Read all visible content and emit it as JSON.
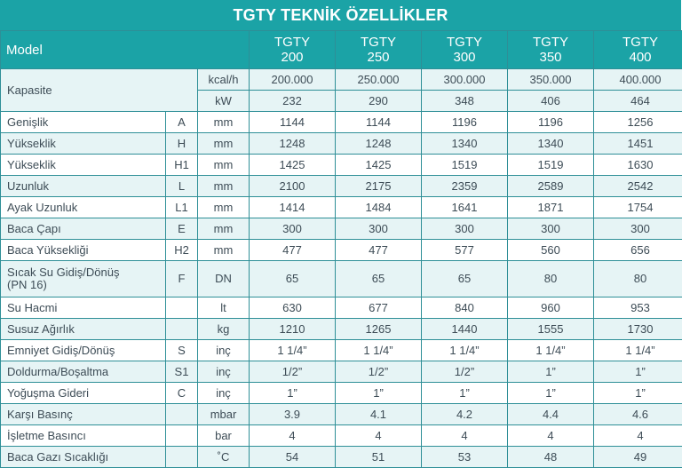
{
  "title": "TGTY TEKNİK ÖZELLİKLER",
  "header": {
    "model_label": "Model",
    "models": [
      {
        "line1": "TGTY",
        "line2": "200"
      },
      {
        "line1": "TGTY",
        "line2": "250"
      },
      {
        "line1": "TGTY",
        "line2": "300"
      },
      {
        "line1": "TGTY",
        "line2": "350"
      },
      {
        "line1": "TGTY",
        "line2": "400"
      }
    ]
  },
  "capacity": {
    "label": "Kapasite",
    "rows": [
      {
        "unit": "kcal/h",
        "values": [
          "200.000",
          "250.000",
          "300.000",
          "350.000",
          "400.000"
        ]
      },
      {
        "unit": "kW",
        "values": [
          "232",
          "290",
          "348",
          "406",
          "464"
        ]
      }
    ]
  },
  "rows": [
    {
      "label": "Genişlik",
      "code": "A",
      "unit": "mm",
      "values": [
        "1144",
        "1144",
        "1196",
        "1196",
        "1256"
      ]
    },
    {
      "label": "Yükseklik",
      "code": "H",
      "unit": "mm",
      "values": [
        "1248",
        "1248",
        "1340",
        "1340",
        "1451"
      ]
    },
    {
      "label": "Yükseklik",
      "code": "H1",
      "unit": "mm",
      "values": [
        "1425",
        "1425",
        "1519",
        "1519",
        "1630"
      ]
    },
    {
      "label": "Uzunluk",
      "code": "L",
      "unit": "mm",
      "values": [
        "2100",
        "2175",
        "2359",
        "2589",
        "2542"
      ]
    },
    {
      "label": "Ayak Uzunluk",
      "code": "L1",
      "unit": "mm",
      "values": [
        "1414",
        "1484",
        "1641",
        "1871",
        "1754"
      ]
    },
    {
      "label": "Baca Çapı",
      "code": "E",
      "unit": "mm",
      "values": [
        "300",
        "300",
        "300",
        "300",
        "300"
      ]
    },
    {
      "label": "Baca Yüksekliği",
      "code": "H2",
      "unit": "mm",
      "values": [
        "477",
        "477",
        "577",
        "560",
        "656"
      ]
    },
    {
      "label": "Sıcak Su Gidiş/Dönüş",
      "label2": "(PN 16)",
      "code": "F",
      "unit": "DN",
      "values": [
        "65",
        "65",
        "65",
        "80",
        "80"
      ]
    },
    {
      "label": "Su Hacmi",
      "code": "",
      "unit": "lt",
      "values": [
        "630",
        "677",
        "840",
        "960",
        "953"
      ]
    },
    {
      "label": "Susuz Ağırlık",
      "code": "",
      "unit": "kg",
      "values": [
        "1210",
        "1265",
        "1440",
        "1555",
        "1730"
      ]
    },
    {
      "label": "Emniyet Gidiş/Dönüş",
      "code": "S",
      "unit": "inç",
      "values": [
        "1 1/4”",
        "1 1/4”",
        "1 1/4”",
        "1 1/4”",
        "1 1/4”"
      ]
    },
    {
      "label": "Doldurma/Boşaltma",
      "code": "S1",
      "unit": "inç",
      "values": [
        "1/2”",
        "1/2”",
        "1/2”",
        "1”",
        "1”"
      ]
    },
    {
      "label": "Yoğuşma Gideri",
      "code": "C",
      "unit": "inç",
      "values": [
        "1”",
        "1”",
        "1”",
        "1”",
        "1”"
      ]
    },
    {
      "label": "Karşı Basınç",
      "code": "",
      "unit": "mbar",
      "values": [
        "3.9",
        "4.1",
        "4.2",
        "4.4",
        "4.6"
      ]
    },
    {
      "label": "İşletme Basıncı",
      "code": "",
      "unit": "bar",
      "values": [
        "4",
        "4",
        "4",
        "4",
        "4"
      ]
    },
    {
      "label": "Baca Gazı Sıcaklığı",
      "code": "",
      "unit": "˚C",
      "values": [
        "54",
        "51",
        "53",
        "48",
        "49"
      ]
    }
  ]
}
